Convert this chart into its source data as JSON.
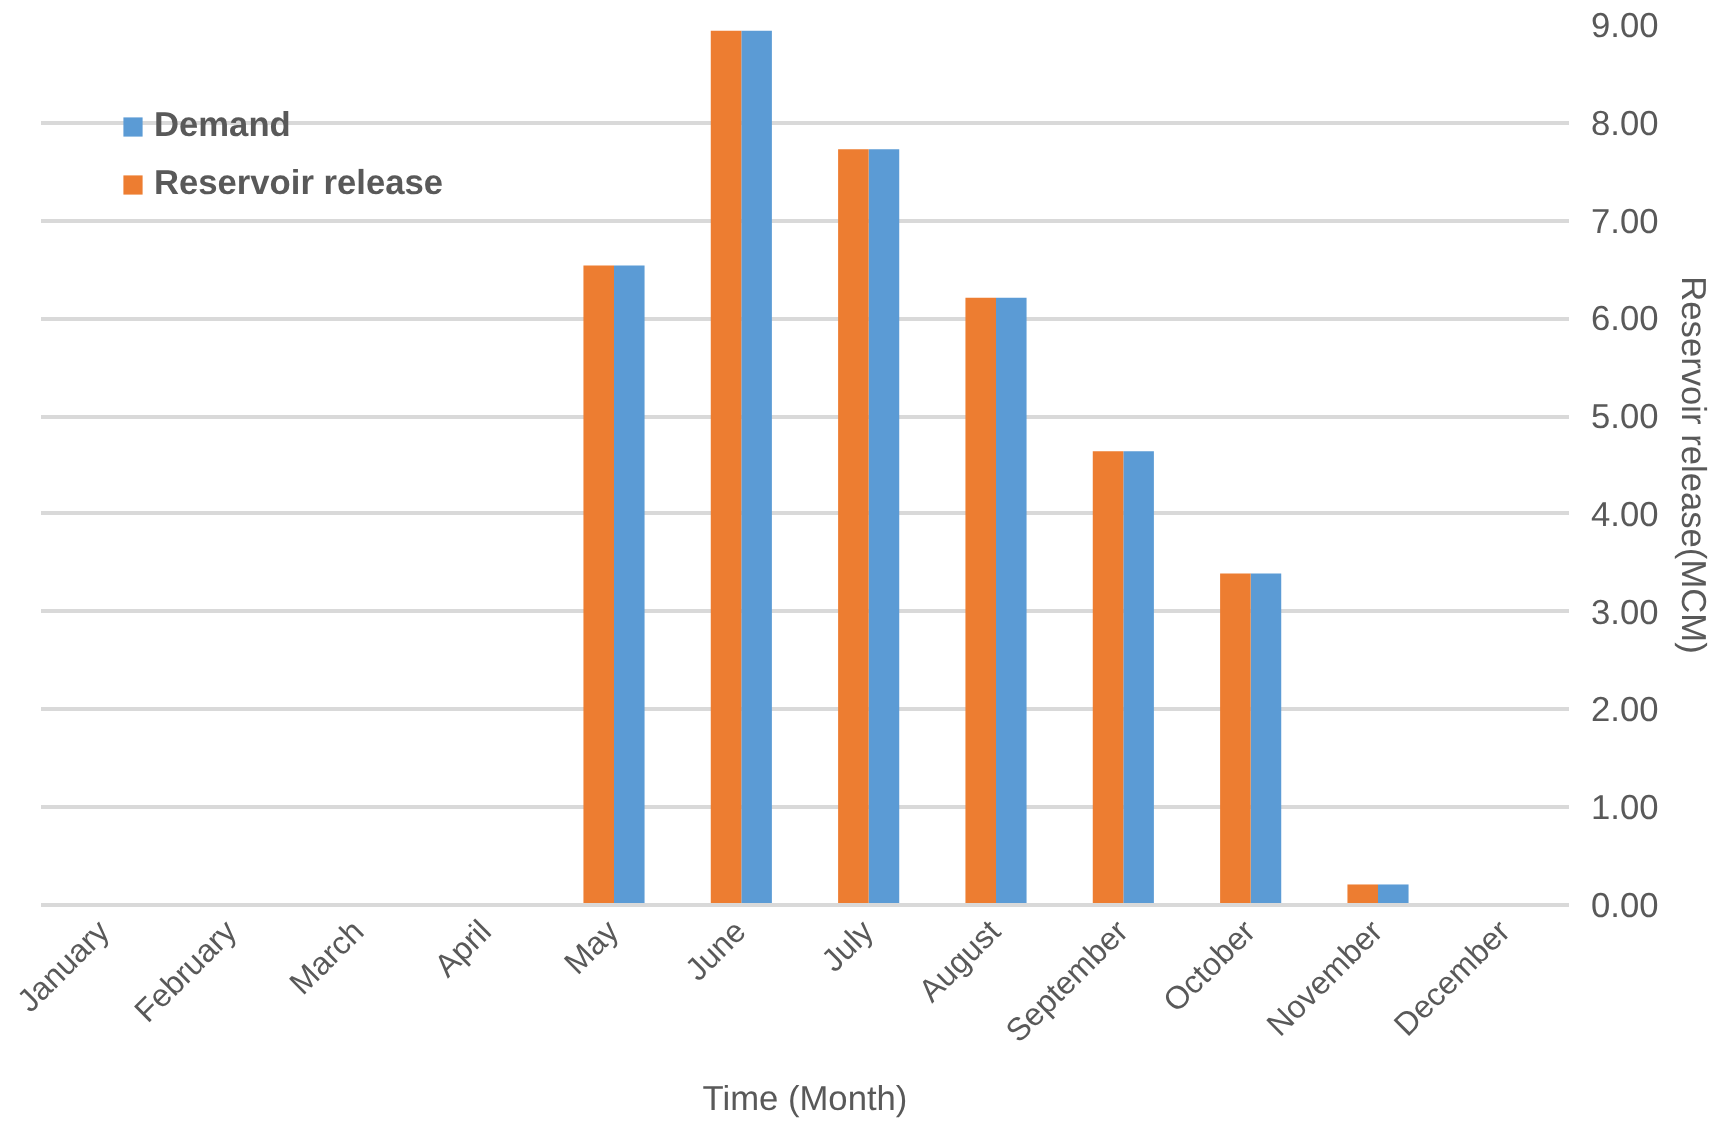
{
  "chart_data": {
    "type": "bar",
    "xlabel": "Time (Month)",
    "ylabel": "Reservoir release(MCM)",
    "categories": [
      "January",
      "February",
      "March",
      "April",
      "May",
      "June",
      "July",
      "August",
      "September",
      "October",
      "November",
      "December"
    ],
    "series": [
      {
        "name": "Demand",
        "color": "#5b9bd5",
        "values": [
          0,
          0,
          0,
          0,
          6.54,
          8.94,
          7.73,
          6.21,
          4.64,
          3.39,
          0.21,
          0
        ]
      },
      {
        "name": "Reservoir release",
        "color": "#ed7d31",
        "values": [
          0,
          0,
          0,
          0,
          6.54,
          8.94,
          7.73,
          6.21,
          4.64,
          3.39,
          0.21,
          0
        ]
      }
    ],
    "ylim": [
      0,
      9
    ],
    "yticks": [
      {
        "value": 0,
        "label": "0.00"
      },
      {
        "value": 1,
        "label": "1.00"
      },
      {
        "value": 2,
        "label": "2.00"
      },
      {
        "value": 3,
        "label": "3.00"
      },
      {
        "value": 4,
        "label": "4.00"
      },
      {
        "value": 5,
        "label": "5.00"
      },
      {
        "value": 6,
        "label": "6.00"
      },
      {
        "value": 7,
        "label": "7.00"
      },
      {
        "value": 8,
        "label": "8.00"
      },
      {
        "value": 9,
        "label": "9.00"
      }
    ],
    "grid": "y",
    "legend": "top left"
  }
}
